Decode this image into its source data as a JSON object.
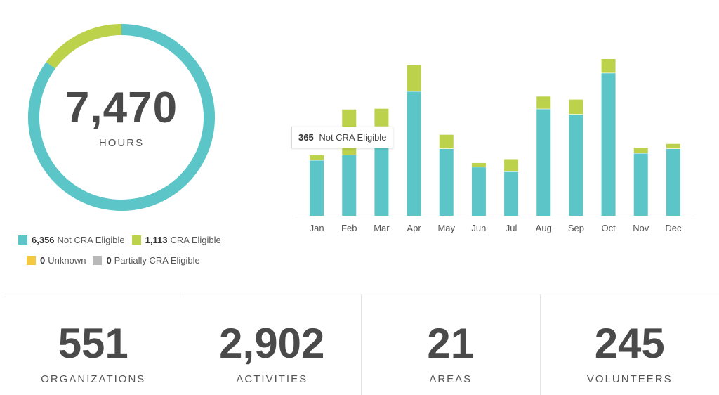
{
  "colors": {
    "not_cra": "#5bc5c8",
    "cra": "#bcd24a",
    "unknown": "#f5c842",
    "partial": "#b8b8b8",
    "axis": "#e6e6e6"
  },
  "donut": {
    "total": "7,470",
    "unit": "HOURS"
  },
  "legend": [
    {
      "value": "6,356",
      "label": "Not CRA Eligible",
      "color": "#5bc5c8"
    },
    {
      "value": "1,113",
      "label": "CRA Eligible",
      "color": "#bcd24a"
    },
    {
      "value": "0",
      "label": "Unknown",
      "color": "#f5c842"
    },
    {
      "value": "0",
      "label": "Partially CRA Eligible",
      "color": "#b8b8b8"
    }
  ],
  "tooltip": {
    "value": "365",
    "label": "Not CRA Eligible"
  },
  "chart_data": [
    {
      "type": "pie",
      "variant": "donut",
      "categories": [
        "Not CRA Eligible",
        "CRA Eligible",
        "Unknown",
        "Partially CRA Eligible"
      ],
      "values": [
        6356,
        1113,
        0,
        0
      ]
    },
    {
      "type": "bar",
      "stacked": true,
      "categories": [
        "Jan",
        "Feb",
        "Mar",
        "Apr",
        "May",
        "Jun",
        "Jul",
        "Aug",
        "Sep",
        "Oct",
        "Nov",
        "Dec"
      ],
      "series": [
        {
          "name": "Not CRA Eligible",
          "values": [
            365,
            400,
            585,
            815,
            440,
            320,
            290,
            700,
            665,
            935,
            410,
            440
          ]
        },
        {
          "name": "CRA Eligible",
          "values": [
            30,
            295,
            115,
            170,
            90,
            25,
            80,
            80,
            95,
            90,
            35,
            30
          ]
        }
      ],
      "ylim": [
        0,
        1080
      ],
      "grid": false
    }
  ],
  "stats": [
    {
      "value": "551",
      "label": "ORGANIZATIONS"
    },
    {
      "value": "2,902",
      "label": "ACTIVITIES"
    },
    {
      "value": "21",
      "label": "AREAS"
    },
    {
      "value": "245",
      "label": "VOLUNTEERS"
    }
  ]
}
